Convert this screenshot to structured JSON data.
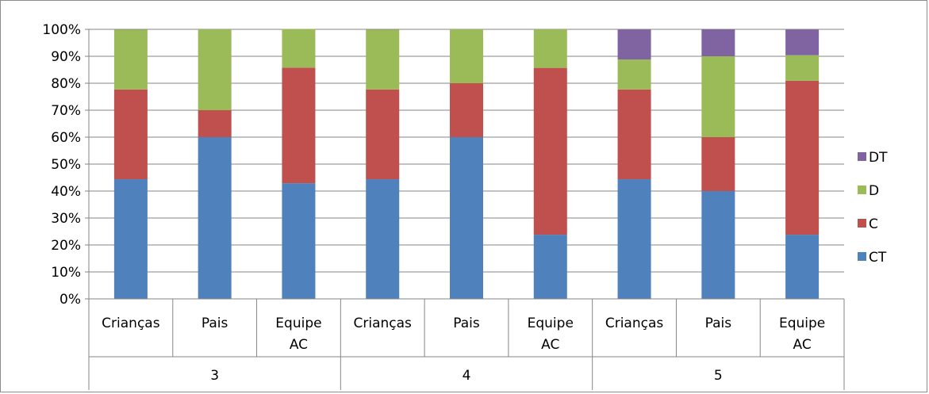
{
  "chart_data": {
    "type": "bar",
    "stacked": "percent",
    "title": "",
    "xlabel": "",
    "ylabel": "",
    "ylim": [
      0,
      100
    ],
    "y_ticks": [
      "0%",
      "10%",
      "20%",
      "30%",
      "40%",
      "50%",
      "60%",
      "70%",
      "80%",
      "90%",
      "100%"
    ],
    "grid": true,
    "legend_position": "right",
    "groups": [
      "3",
      "4",
      "5"
    ],
    "categories": [
      {
        "label_lines": [
          "Crianças"
        ],
        "group": "3"
      },
      {
        "label_lines": [
          "Pais"
        ],
        "group": "3"
      },
      {
        "label_lines": [
          "Equipe",
          "AC"
        ],
        "group": "3"
      },
      {
        "label_lines": [
          "Crianças"
        ],
        "group": "4"
      },
      {
        "label_lines": [
          "Pais"
        ],
        "group": "4"
      },
      {
        "label_lines": [
          "Equipe",
          "AC"
        ],
        "group": "4"
      },
      {
        "label_lines": [
          "Crianças"
        ],
        "group": "5"
      },
      {
        "label_lines": [
          "Pais"
        ],
        "group": "5"
      },
      {
        "label_lines": [
          "Equipe",
          "AC"
        ],
        "group": "5"
      }
    ],
    "series": [
      {
        "name": "CT",
        "color": "#4f81bd",
        "values": [
          44.4,
          60,
          42.9,
          44.4,
          60,
          23.8,
          44.4,
          40,
          23.8
        ]
      },
      {
        "name": "C",
        "color": "#c0504d",
        "values": [
          33.3,
          10,
          42.9,
          33.3,
          20,
          61.9,
          33.3,
          20,
          57.1
        ]
      },
      {
        "name": "D",
        "color": "#9bbb59",
        "values": [
          22.2,
          30,
          14.3,
          22.2,
          20,
          14.3,
          11.1,
          30,
          9.5
        ]
      },
      {
        "name": "DT",
        "color": "#8064a2",
        "values": [
          0,
          0,
          0,
          0,
          0,
          0,
          11.1,
          10,
          9.5
        ]
      }
    ]
  }
}
